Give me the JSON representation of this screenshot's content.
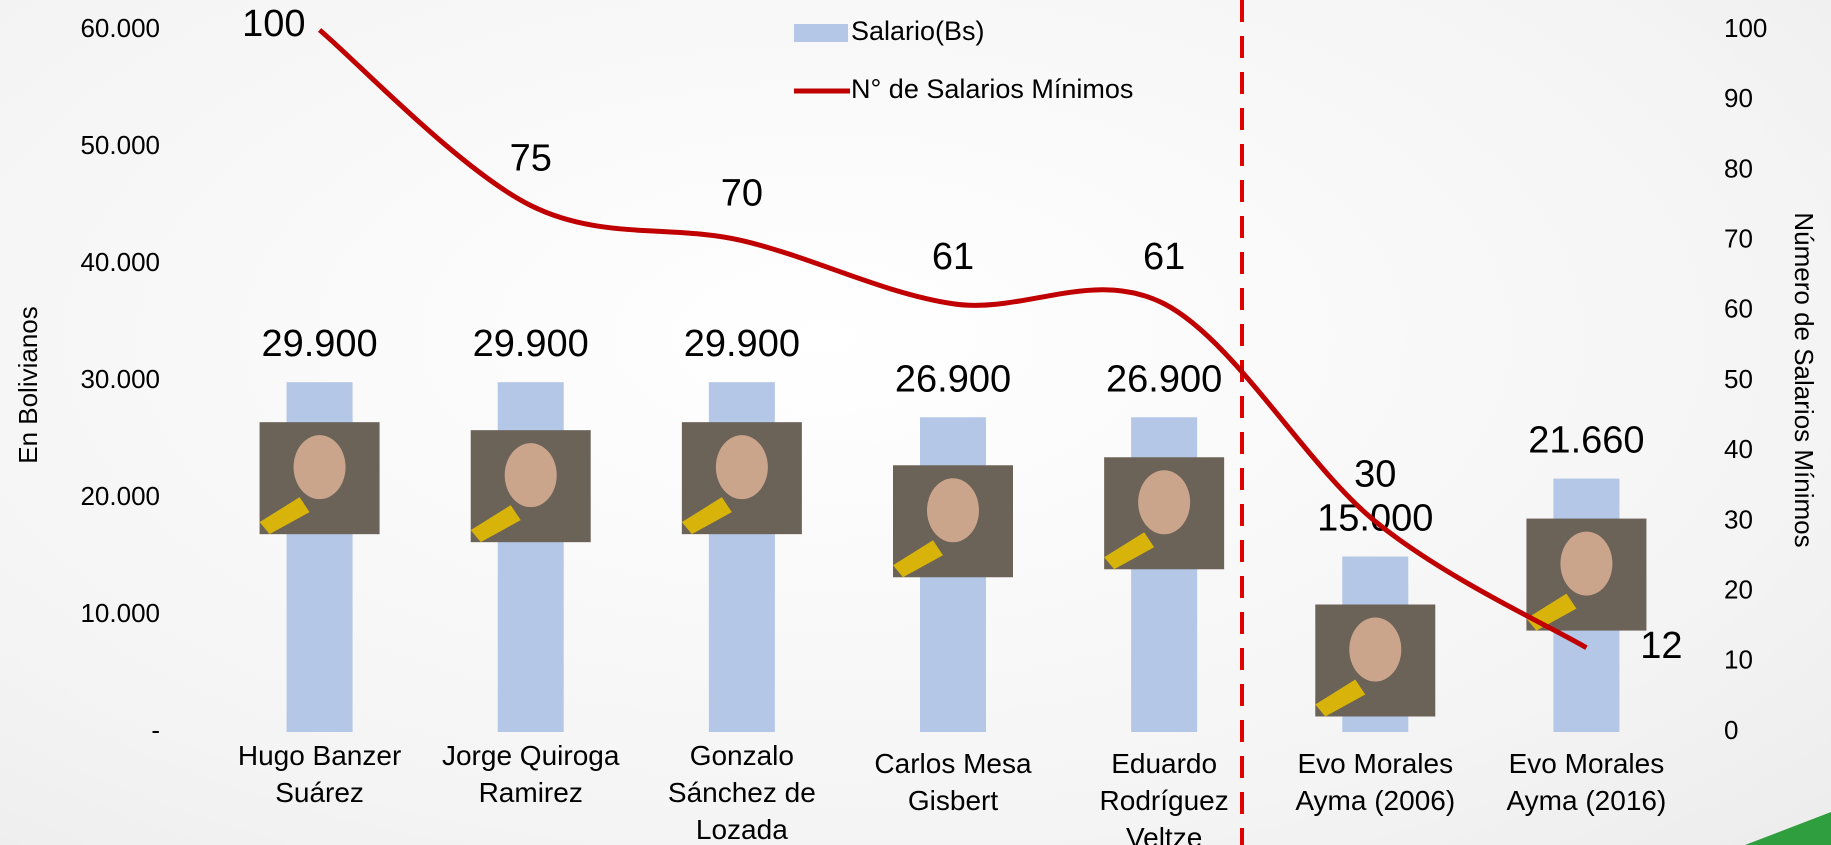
{
  "chart_data": {
    "type": "bar_line",
    "y_axis_title": "En Bolivianos",
    "y2_axis_title": "Número de Salarios Mínimos",
    "categories": [
      "Hugo Banzer Suárez",
      "Jorge Quiroga Ramirez",
      "Gonzalo Sánchez de Lozada",
      "Carlos Mesa Gisbert",
      "Eduardo Rodríguez Veltze",
      "Evo Morales Ayma (2006)",
      "Evo Morales Ayma (2016)"
    ],
    "series": [
      {
        "name": "Salario(Bs)",
        "type": "bar",
        "color": "#b4c7e7",
        "label_color": "#000000",
        "values": [
          29900,
          29900,
          29900,
          26900,
          26900,
          15000,
          21660
        ],
        "value_labels": [
          "29.900",
          "29.900",
          "29.900",
          "26.900",
          "26.900",
          "15.000",
          "21.660"
        ]
      },
      {
        "name": "N° de Salarios Mínimos",
        "type": "line",
        "axis": "y2",
        "color": "#c00000",
        "label_color": "#ff0000",
        "values": [
          100,
          75,
          70,
          61,
          61,
          30,
          12
        ]
      }
    ],
    "ylim": [
      0,
      60000
    ],
    "yticks": [
      {
        "value": 0,
        "label": "-"
      },
      {
        "value": 10000,
        "label": "10.000"
      },
      {
        "value": 20000,
        "label": "20.000"
      },
      {
        "value": 30000,
        "label": "30.000"
      },
      {
        "value": 40000,
        "label": "40.000"
      },
      {
        "value": 50000,
        "label": "50.000"
      },
      {
        "value": 60000,
        "label": "60.000"
      }
    ],
    "y2lim": [
      0,
      100
    ],
    "y2ticks": [
      0,
      10,
      20,
      30,
      40,
      50,
      60,
      70,
      80,
      90,
      100
    ],
    "grid": false
  }
}
